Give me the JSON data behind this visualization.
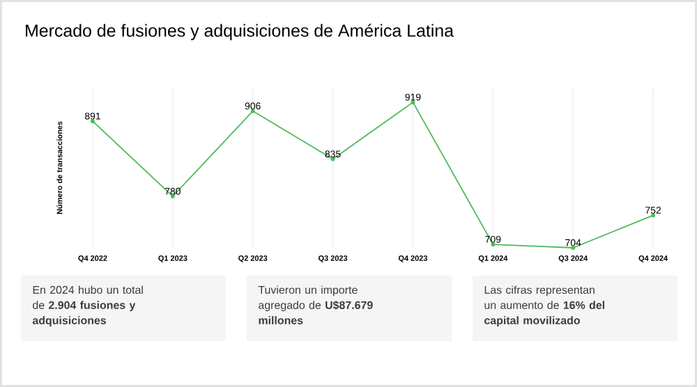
{
  "chart_data": {
    "type": "line",
    "title": "Mercado de fusiones y adquisiciones de América Latina",
    "ylabel": "Número de transacciones",
    "categories": [
      "Q4 2022",
      "Q1 2023",
      "Q2 2023",
      "Q3 2023",
      "Q4 2023",
      "Q1 2024",
      "Q3 2024",
      "Q4 2024"
    ],
    "series": [
      {
        "color": "#4cbb5a",
        "values": [
          891,
          780,
          906,
          835,
          919,
          709,
          704,
          752
        ]
      }
    ],
    "data_labels": true,
    "grid": "x",
    "marker": "circle",
    "line_style": "solid",
    "tick_labels": "x",
    "annotations": [
      "En 2024 hubo un total de **2.904 fusiones y adquisiciones**",
      "Tuvieron un importe agregado de **U$87.679 millones**",
      "Las cifras representan un aumento de **16% del capital movilizado**"
    ]
  }
}
